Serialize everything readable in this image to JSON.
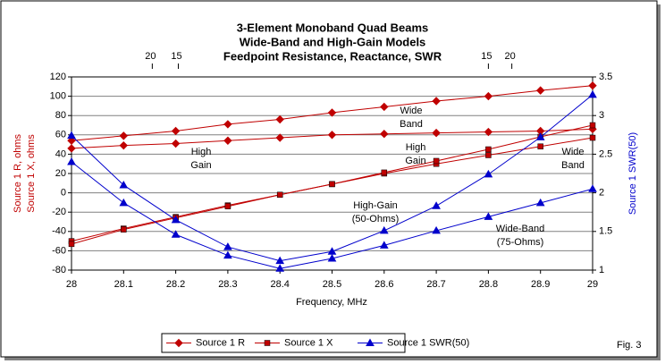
{
  "chart_data": {
    "type": "line",
    "title": [
      "3-Element Monoband Quad Beams",
      "Wide-Band and High-Gain Models",
      "Feedpoint Resistance, Reactance, SWR"
    ],
    "x_label": "Frequency, MHz",
    "y_label": [
      "Source 1 R, ohms",
      "Source 1 X, ohms"
    ],
    "y2_label": "Source 1 SWR(50)",
    "x": [
      28,
      28.1,
      28.2,
      28.3,
      28.4,
      28.5,
      28.6,
      28.7,
      28.8,
      28.9,
      29
    ],
    "xlim": [
      28,
      29
    ],
    "xticks": [
      28,
      28.1,
      28.2,
      28.3,
      28.4,
      28.5,
      28.6,
      28.7,
      28.8,
      28.9,
      29
    ],
    "ylim": [
      -80,
      120
    ],
    "yticks": [
      -80,
      -60,
      -40,
      -20,
      0,
      20,
      40,
      60,
      80,
      100,
      120
    ],
    "y2lim": [
      1,
      3.5
    ],
    "y2ticks": [
      1,
      1.5,
      2,
      2.5,
      3,
      3.5
    ],
    "top_ticks": [
      {
        "value": 28.155,
        "label": "20"
      },
      {
        "value": 28.205,
        "label": "15"
      },
      {
        "value": 28.8,
        "label": "15"
      },
      {
        "value": 28.845,
        "label": "20"
      }
    ],
    "grid": true,
    "series": [
      {
        "name": "Source 1 R",
        "color": "#c00000",
        "marker": "diamond",
        "values": [
          [
            54,
            59,
            64,
            71,
            76,
            83,
            89,
            95,
            100,
            106,
            111
          ],
          [
            46,
            49,
            51,
            54,
            57,
            60,
            61,
            62,
            63,
            64,
            66
          ]
        ]
      },
      {
        "name": "Source 1 X",
        "color": "#c00000",
        "marker": "square",
        "values": [
          [
            -50,
            -37,
            -25,
            -13,
            -2,
            9,
            20,
            30,
            39,
            48,
            57
          ],
          [
            -53,
            -38,
            -26,
            -14,
            -2,
            9,
            21,
            33,
            45,
            58,
            70
          ]
        ]
      },
      {
        "name": "Source 1 SWR(50)",
        "color": "#0000cc",
        "marker": "triangle",
        "axis": "y2",
        "values": [
          [
            2.4,
            1.87,
            1.46,
            1.19,
            1.02,
            1.15,
            1.32,
            1.51,
            1.69,
            1.87,
            2.05
          ],
          [
            2.74,
            2.1,
            1.65,
            1.3,
            1.12,
            1.24,
            1.51,
            1.83,
            2.24,
            2.72,
            3.27
          ]
        ]
      }
    ],
    "annotations": [
      [
        "Wide",
        "Band"
      ],
      [
        "High",
        "Gain"
      ],
      [
        "High",
        "Gain"
      ],
      [
        "Wide",
        "Band"
      ],
      [
        "High-Gain",
        "(50-Ohms)"
      ],
      [
        "Wide-Band",
        "(75-Ohms)"
      ]
    ],
    "figure_label": "Fig. 3"
  }
}
